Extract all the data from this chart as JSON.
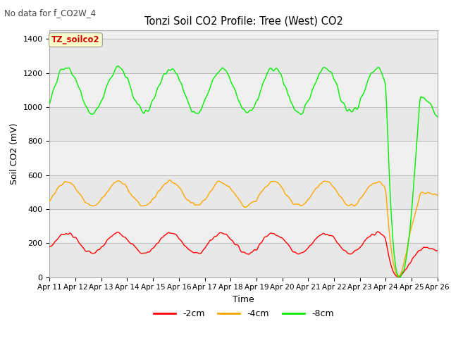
{
  "title": "Tonzi Soil CO2 Profile: Tree (West) CO2",
  "no_data_text": "No data for f_CO2W_4",
  "ylabel": "Soil CO2 (mV)",
  "xlabel": "Time",
  "ylim": [
    0,
    1450
  ],
  "legend_box_text": "TZ_soilco2",
  "legend_box_color": "#cc0000",
  "legend_box_bg": "#ffffcc",
  "x_tick_labels": [
    "Apr 11",
    "Apr 12",
    "Apr 13",
    "Apr 14",
    "Apr 15",
    "Apr 16",
    "Apr 17",
    "Apr 18",
    "Apr 19",
    "Apr 20",
    "Apr 21",
    "Apr 22",
    "Apr 23",
    "Apr 24",
    "Apr 25",
    "Apr 26"
  ],
  "series": [
    {
      "label": "-2cm",
      "color": "#ff0000"
    },
    {
      "label": "-4cm",
      "color": "#ffa500"
    },
    {
      "label": "-8cm",
      "color": "#00ee00"
    }
  ],
  "bg_bands": [
    {
      "ymin": 0,
      "ymax": 200,
      "color": "#e8e8e8"
    },
    {
      "ymin": 400,
      "ymax": 600,
      "color": "#e8e8e8"
    },
    {
      "ymin": 800,
      "ymax": 1000,
      "color": "#e8e8e8"
    },
    {
      "ymin": 1200,
      "ymax": 1400,
      "color": "#e8e8e8"
    }
  ],
  "plot_bg": "#f0f0f0",
  "red_mean": 200,
  "red_amp": 60,
  "red_period": 2.0,
  "orange_mean": 490,
  "orange_amp": 70,
  "orange_period": 2.0,
  "green_mean": 1100,
  "green_amp": 130,
  "green_period": 2.0
}
